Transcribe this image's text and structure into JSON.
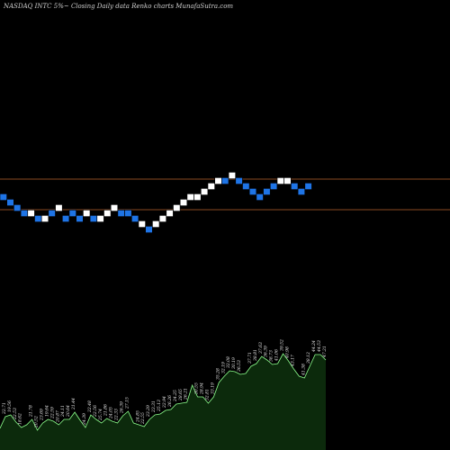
{
  "chart_data": {
    "type": "renko",
    "title": "NASDAQ INTC 5%~ Closing Daily data Renko charts MunafaSutra.com",
    "reference_lines": [
      {
        "label": "upper",
        "color": "#8a4a22"
      },
      {
        "label": "lower",
        "color": "#8a4a22"
      }
    ],
    "colors": {
      "up": "#ffffff",
      "down": "#1e74e6",
      "volume": "#0c2a0c",
      "volume_line": "#7cff7c",
      "line": "#8a4a22"
    },
    "renko_levels": [
      219,
      225,
      231,
      237,
      237,
      243,
      243,
      237,
      231,
      243,
      237,
      243,
      237,
      243,
      243,
      237,
      231,
      237,
      237,
      243,
      249,
      255,
      249,
      243,
      237,
      231,
      225,
      219,
      219,
      213,
      207,
      201,
      201,
      195,
      201,
      207,
      213,
      219,
      213,
      207,
      201,
      201,
      207,
      213,
      207
    ],
    "renko_colors": [
      "down",
      "down",
      "down",
      "down",
      "up",
      "down",
      "up",
      "down",
      "up",
      "down",
      "down",
      "down",
      "up",
      "down",
      "up",
      "up",
      "up",
      "down",
      "down",
      "down",
      "up",
      "down",
      "up",
      "up",
      "up",
      "up",
      "up",
      "up",
      "up",
      "up",
      "up",
      "up",
      "down",
      "up",
      "down",
      "down",
      "down",
      "down",
      "down",
      "down",
      "up",
      "up",
      "down",
      "down",
      "down"
    ],
    "volume_labels": [
      "16.88",
      "22.71",
      "19.56",
      "22.53",
      "18.62",
      "21.78",
      "20.52",
      "23.69",
      "19.64",
      "22.59",
      "20.87",
      "24.11",
      "20.64",
      "21.44",
      "24.39",
      "22.48",
      "22.56",
      "25.74",
      "21.86",
      "24.05",
      "22.33",
      "26.39",
      "27.15",
      "24.85",
      "22.55",
      "23.29",
      "23.31",
      "25.13",
      "22.94",
      "26.26",
      "24.25",
      "28.65",
      "26.21",
      "30.55",
      "28.94",
      "32.81",
      "33.19",
      "35.28",
      "32.19",
      "32.08",
      "30.19",
      "36.53",
      "37.71",
      "38.81",
      "37.63",
      "36.39",
      "38.73",
      "41.06",
      "39.52",
      "40.98",
      "43.17",
      "41.38",
      "38.12",
      "44.24",
      "44.53",
      "47.21"
    ],
    "volume_values": [
      476,
      463,
      461,
      469,
      475,
      472,
      466,
      478,
      470,
      466,
      468,
      472,
      466,
      466,
      458,
      467,
      475,
      461,
      466,
      470,
      465,
      468,
      470,
      462,
      457,
      470,
      472,
      474,
      466,
      461,
      460,
      456,
      455,
      449,
      448,
      447,
      428,
      441,
      441,
      448,
      441,
      425,
      418,
      412,
      413,
      416,
      415,
      407,
      404,
      396,
      400,
      405,
      404,
      393,
      401,
      410,
      418,
      420,
      407,
      394,
      394,
      400
    ]
  }
}
